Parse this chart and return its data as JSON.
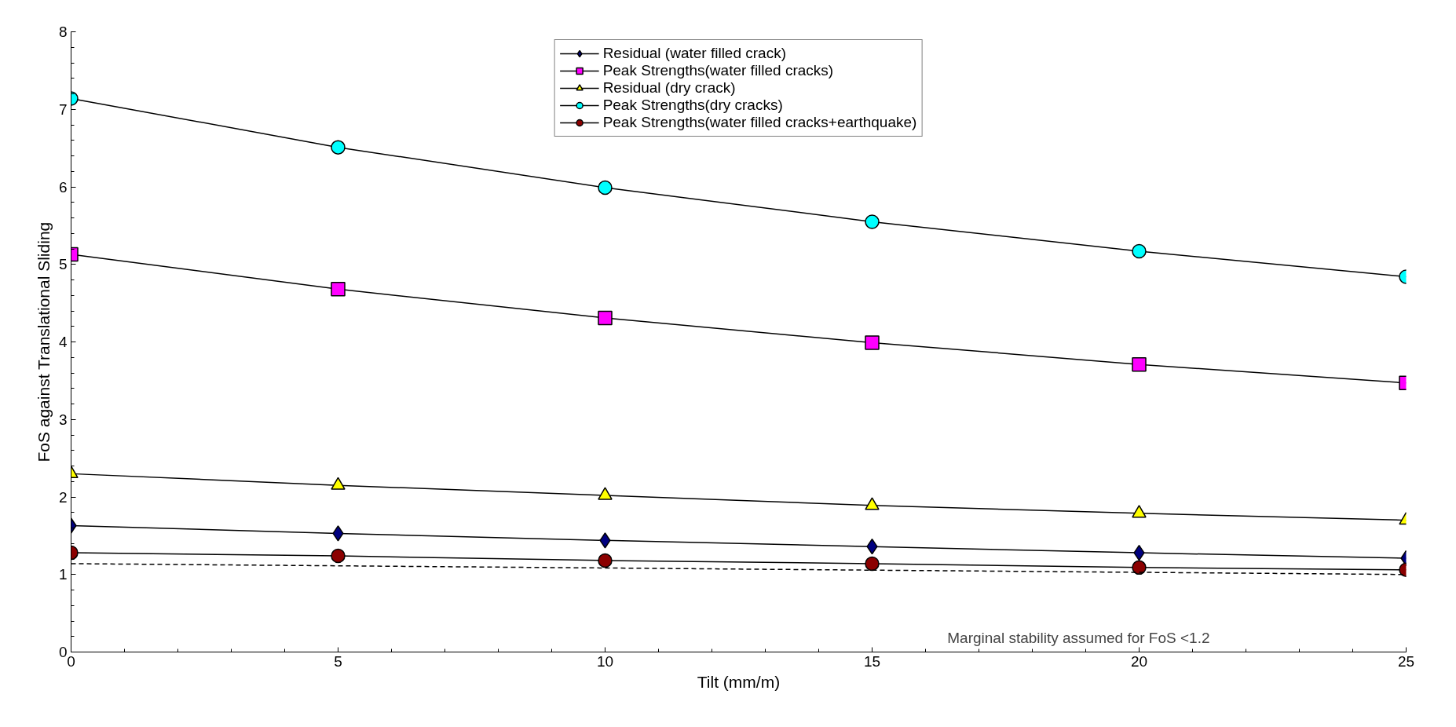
{
  "chart_data": {
    "type": "line",
    "xlabel": "Tilt (mm/m)",
    "ylabel": "FoS against Translational Sliding",
    "x": [
      0,
      5,
      10,
      15,
      20,
      25
    ],
    "xlim": [
      0,
      25
    ],
    "xticks": [
      0,
      5,
      10,
      15,
      20,
      25
    ],
    "ylim": [
      0,
      8
    ],
    "yticks": [
      0,
      1,
      2,
      3,
      4,
      5,
      6,
      7,
      8
    ],
    "legend": "top",
    "series": [
      {
        "name": "Residual (water filled crack)",
        "color": "#000080",
        "marker": "diamond",
        "values": [
          1.63,
          1.53,
          1.44,
          1.36,
          1.28,
          1.21
        ]
      },
      {
        "name": "Peak Strengths(water filled cracks)",
        "color": "#ff00ff",
        "marker": "square",
        "values": [
          5.13,
          4.68,
          4.31,
          3.99,
          3.71,
          3.47
        ]
      },
      {
        "name": "Residual (dry crack)",
        "color": "#ffff00",
        "marker": "triangle",
        "values": [
          2.3,
          2.15,
          2.02,
          1.89,
          1.79,
          1.7
        ]
      },
      {
        "name": "Peak Strengths(dry cracks)",
        "color": "#00ffff",
        "marker": "circle",
        "values": [
          7.14,
          6.51,
          5.99,
          5.55,
          5.17,
          4.84
        ]
      },
      {
        "name": "Peak Strengths(water filled cracks+earthquake)",
        "color": "#8b0000",
        "marker": "circle",
        "values": [
          1.28,
          1.24,
          1.18,
          1.14,
          1.09,
          1.06
        ]
      },
      {
        "color": "#000000",
        "marker": "none",
        "line_style": "dashed",
        "x": [
          0,
          25
        ],
        "values": [
          1.14,
          1.0
        ]
      }
    ],
    "annotations": [
      "Marginal stability assumed for FoS <1.2"
    ]
  }
}
